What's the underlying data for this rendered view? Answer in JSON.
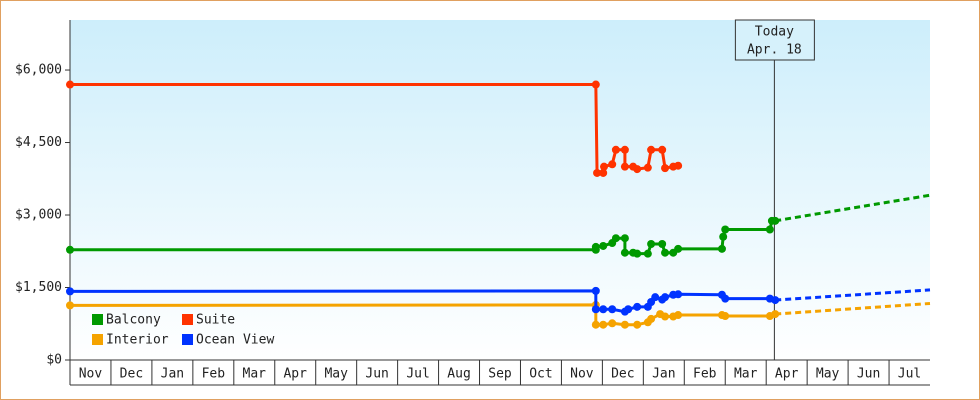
{
  "chart_data": {
    "type": "line",
    "series": [
      {
        "name": "Balcony",
        "color": "#009900",
        "x": [
          0,
          12.84,
          12.84,
          13.02,
          13.24,
          13.33,
          13.55,
          13.55,
          13.75,
          13.85,
          14.11,
          14.19,
          14.46,
          14.53,
          14.73,
          14.85,
          15.92,
          15.95,
          16.0,
          17.09,
          17.14,
          17.22
        ],
        "values": [
          2280,
          2280,
          2340,
          2360,
          2420,
          2520,
          2520,
          2220,
          2220,
          2200,
          2200,
          2400,
          2400,
          2220,
          2220,
          2300,
          2300,
          2550,
          2700,
          2700,
          2880,
          2880
        ],
        "forecast_x": [
          17.22,
          21
        ],
        "forecast_values": [
          2880,
          3410
        ]
      },
      {
        "name": "Suite",
        "color": "#ff3300",
        "x": [
          0,
          12.84,
          12.87,
          13.02,
          13.04,
          13.24,
          13.33,
          13.55,
          13.55,
          13.75,
          13.85,
          14.11,
          14.19,
          14.46,
          14.53,
          14.73,
          14.85
        ],
        "values": [
          5700,
          5700,
          3870,
          3870,
          4000,
          4050,
          4350,
          4350,
          4000,
          4000,
          3950,
          3980,
          4350,
          4350,
          3970,
          4000,
          4020
        ]
      },
      {
        "name": "Interior",
        "color": "#f5a300",
        "x": [
          0,
          12.84,
          12.84,
          13.02,
          13.24,
          13.55,
          13.85,
          14.11,
          14.19,
          14.41,
          14.53,
          14.73,
          14.85,
          15.92,
          16.0,
          17.09,
          17.22
        ],
        "values": [
          1130,
          1140,
          730,
          730,
          760,
          730,
          730,
          780,
          850,
          950,
          900,
          900,
          930,
          930,
          910,
          910,
          950
        ],
        "forecast_x": [
          17.22,
          21
        ],
        "forecast_values": [
          950,
          1170
        ]
      },
      {
        "name": "Ocean View",
        "color": "#0033ff",
        "x": [
          0,
          12.84,
          12.84,
          13.02,
          13.24,
          13.55,
          13.63,
          13.85,
          14.11,
          14.19,
          14.29,
          14.46,
          14.53,
          14.73,
          14.85,
          15.92,
          16.0,
          17.09,
          17.22
        ],
        "values": [
          1420,
          1430,
          1050,
          1050,
          1050,
          1000,
          1050,
          1100,
          1100,
          1200,
          1300,
          1250,
          1300,
          1350,
          1360,
          1350,
          1270,
          1270,
          1240
        ],
        "forecast_x": [
          17.22,
          21
        ],
        "forecast_values": [
          1240,
          1450
        ]
      }
    ],
    "xlim": [
      0,
      21
    ],
    "xticks": [
      {
        "value": 0,
        "label": "Nov"
      },
      {
        "value": 1,
        "label": "Dec"
      },
      {
        "value": 2,
        "label": "Jan"
      },
      {
        "value": 3,
        "label": "Feb"
      },
      {
        "value": 4,
        "label": "Mar"
      },
      {
        "value": 5,
        "label": "Apr"
      },
      {
        "value": 6,
        "label": "May"
      },
      {
        "value": 7,
        "label": "Jun"
      },
      {
        "value": 8,
        "label": "Jul"
      },
      {
        "value": 9,
        "label": "Aug"
      },
      {
        "value": 10,
        "label": "Sep"
      },
      {
        "value": 11,
        "label": "Oct"
      },
      {
        "value": 12,
        "label": "Nov"
      },
      {
        "value": 13,
        "label": "Dec"
      },
      {
        "value": 14,
        "label": "Jan"
      },
      {
        "value": 15,
        "label": "Feb"
      },
      {
        "value": 16,
        "label": "Mar"
      },
      {
        "value": 17,
        "label": "Apr"
      },
      {
        "value": 18,
        "label": "May"
      },
      {
        "value": 19,
        "label": "Jun"
      },
      {
        "value": 20,
        "label": "Jul"
      }
    ],
    "ylim": [
      0,
      7000
    ],
    "yticks": [
      {
        "value": 0,
        "label": "$0"
      },
      {
        "value": 1500,
        "label": "$1,500"
      },
      {
        "value": 3000,
        "label": "$3,000"
      },
      {
        "value": 4500,
        "label": "$4,500"
      },
      {
        "value": 6000,
        "label": "$6,000"
      }
    ],
    "annotations": [
      {
        "x": 17.2,
        "text": [
          "Today",
          "Apr. 18"
        ]
      }
    ],
    "legend": "lower left"
  }
}
